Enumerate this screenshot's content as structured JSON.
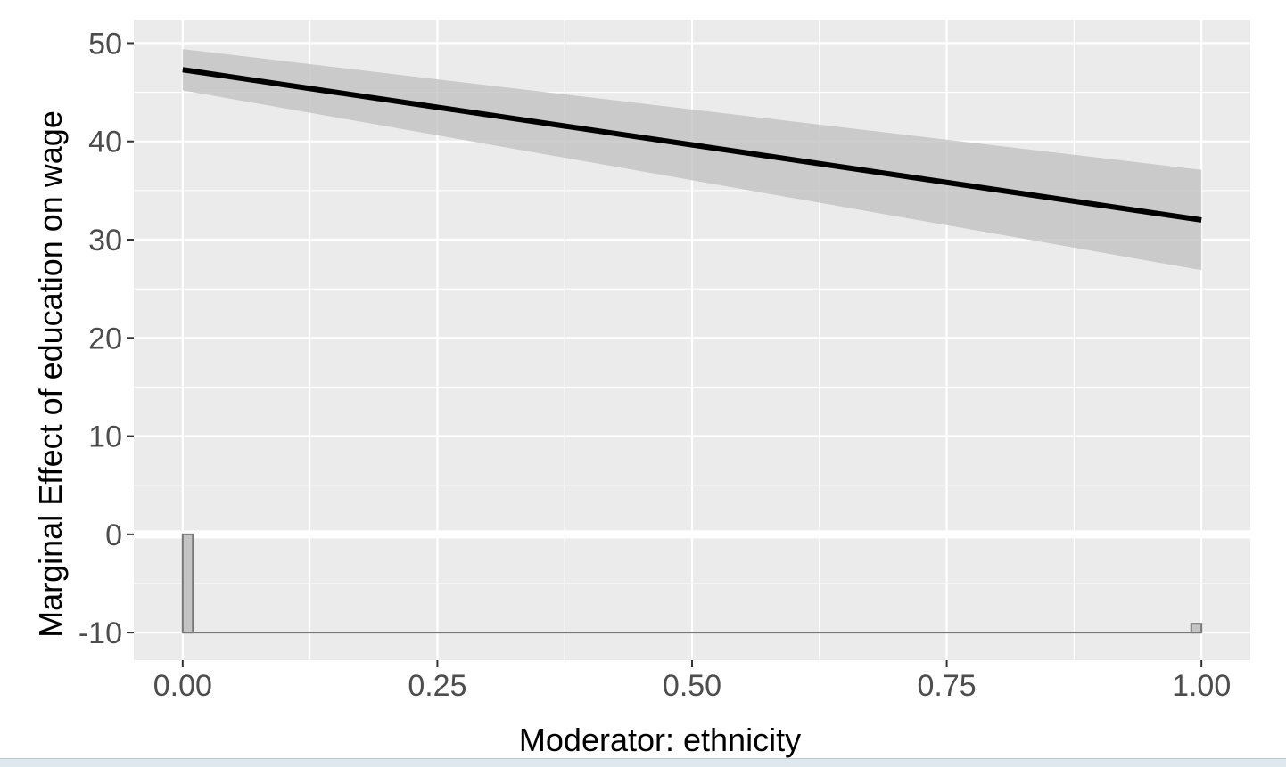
{
  "chart_data": {
    "type": "line",
    "xlabel": "Moderator: ethnicity",
    "ylabel": "Marginal Effect of education on wage",
    "xlim": [
      -0.048,
      1.048
    ],
    "ylim": [
      -12.8,
      52.4
    ],
    "x_ticks": [
      0.0,
      0.25,
      0.5,
      0.75,
      1.0
    ],
    "x_tick_labels": [
      "0.00",
      "0.25",
      "0.50",
      "0.75",
      "1.00"
    ],
    "y_ticks": [
      50,
      40,
      30,
      20,
      10,
      0,
      -10
    ],
    "y_tick_labels": [
      "50",
      "40",
      "30",
      "20",
      "10",
      "0",
      "-10"
    ],
    "grid": true,
    "series": [
      {
        "role": "marginal-effect-line",
        "x": [
          0.0,
          1.0
        ],
        "y": [
          47.3,
          32.0
        ],
        "color": "#000000"
      },
      {
        "role": "confidence-band",
        "x": [
          0.0,
          1.0
        ],
        "lower": [
          45.2,
          26.9
        ],
        "upper": [
          49.4,
          37.1
        ],
        "color": "#bfbfbf"
      }
    ],
    "histogram": {
      "baseline": -10,
      "bins": [
        {
          "x0": 0.0,
          "x1": 0.01,
          "top": 0.0
        },
        {
          "x0": 0.99,
          "x1": 1.0,
          "top": -9.1
        }
      ],
      "color": "#c4c4c4",
      "stroke": "#777777"
    },
    "colors": {
      "panel_background": "#ebebeb",
      "grid": "#ffffff"
    }
  }
}
